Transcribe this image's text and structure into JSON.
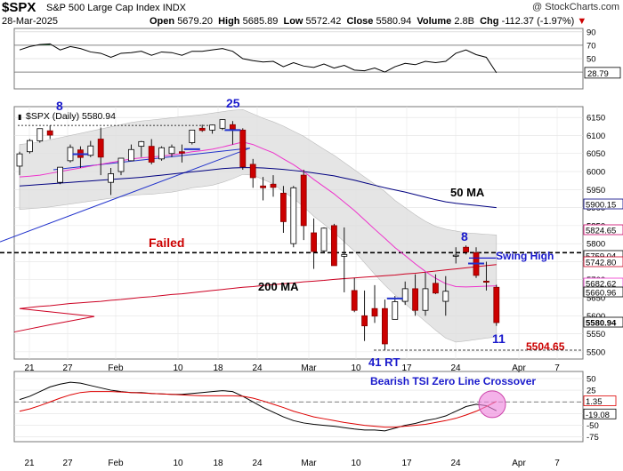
{
  "header": {
    "symbol": "$SPX",
    "name": "S&P 500 Large Cap Index",
    "exchange": "INDX",
    "date": "28-Mar-2025",
    "open_label": "Open",
    "open": "5679.20",
    "high_label": "High",
    "high": "5685.89",
    "low_label": "Low",
    "low": "5572.42",
    "close_label": "Close",
    "close": "5580.94",
    "volume_label": "Volume",
    "volume": "2.8B",
    "chg_label": "Chg",
    "chg": "-112.37 (-1.97%)",
    "watermark": "@ StockCharts.com"
  },
  "colors": {
    "up": "#ffffff",
    "down": "#cc0000",
    "ma50": "#000080",
    "ma200": "#cc0022",
    "ma20": "#ee33cc",
    "band_fill": "#dcdcdc",
    "trend_line": "#2233cc",
    "annotation_blue": "#1a1acc",
    "annotation_red": "#cc0000",
    "tsi_black": "#000000",
    "tsi_red": "#dd0000",
    "rsi_over": "#2e6b3e",
    "rsi_under": "#7a4a48",
    "highlight_circle": "#ee88dd"
  },
  "chart_data": [
    {
      "type": "line",
      "panel": "RSI",
      "ylim": [
        5,
        95
      ],
      "y_ticks": [
        90,
        70,
        50,
        30
      ],
      "reference_lines": [
        70,
        30
      ],
      "last_value_label": "28.79",
      "x": [
        "Jan 21",
        "Jan 22",
        "Jan 23",
        "Jan 24",
        "Jan 27",
        "Jan 28",
        "Jan 29",
        "Jan 30",
        "Jan 31",
        "Feb 3",
        "Feb 4",
        "Feb 5",
        "Feb 6",
        "Feb 7",
        "Feb 10",
        "Feb 11",
        "Feb 12",
        "Feb 13",
        "Feb 14",
        "Feb 18",
        "Feb 19",
        "Feb 20",
        "Feb 21",
        "Feb 24",
        "Feb 25",
        "Feb 26",
        "Feb 27",
        "Feb 28",
        "Mar 3",
        "Mar 4",
        "Mar 5",
        "Mar 6",
        "Mar 7",
        "Mar 10",
        "Mar 11",
        "Mar 12",
        "Mar 13",
        "Mar 14",
        "Mar 17",
        "Mar 18",
        "Mar 19",
        "Mar 20",
        "Mar 21",
        "Mar 24",
        "Mar 25",
        "Mar 26",
        "Mar 27",
        "Mar 28"
      ],
      "values": [
        63,
        68,
        71,
        72,
        63,
        68,
        65,
        60,
        58,
        52,
        58,
        59,
        61,
        55,
        60,
        59,
        55,
        61,
        61,
        63,
        65,
        61,
        50,
        47,
        45,
        46,
        38,
        44,
        39,
        37,
        42,
        36,
        40,
        33,
        32,
        36,
        30,
        38,
        43,
        41,
        46,
        44,
        46,
        58,
        63,
        56,
        52,
        29
      ]
    },
    {
      "type": "candlestick",
      "panel": "price",
      "symbol_label": "$SPX (Daily) 5580.94",
      "ylim": [
        5480,
        6180
      ],
      "y_ticks": [
        6150,
        6100,
        6050,
        6000,
        5950,
        5900,
        5850,
        5800,
        5750,
        5700,
        5650,
        5600,
        5550,
        5500
      ],
      "right_labels": [
        "5900.15",
        "5824.65",
        "5759.04",
        "5742.80",
        "5682.62",
        "5660.96",
        "5580.94"
      ],
      "x_ticks": [
        "21",
        "27",
        "Feb",
        "10",
        "18",
        "24",
        "Mar",
        "10",
        "17",
        "24",
        "Apr",
        "7"
      ],
      "dates": [
        "Jan 21",
        "Jan 22",
        "Jan 23",
        "Jan 24",
        "Jan 27",
        "Jan 28",
        "Jan 29",
        "Jan 30",
        "Jan 31",
        "Feb 3",
        "Feb 4",
        "Feb 5",
        "Feb 6",
        "Feb 7",
        "Feb 10",
        "Feb 11",
        "Feb 12",
        "Feb 13",
        "Feb 14",
        "Feb 18",
        "Feb 19",
        "Feb 20",
        "Feb 21",
        "Feb 24",
        "Feb 25",
        "Feb 26",
        "Feb 27",
        "Feb 28",
        "Mar 3",
        "Mar 4",
        "Mar 5",
        "Mar 6",
        "Mar 7",
        "Mar 10",
        "Mar 11",
        "Mar 12",
        "Mar 13",
        "Mar 14",
        "Mar 17",
        "Mar 18",
        "Mar 19",
        "Mar 20",
        "Mar 21",
        "Mar 24",
        "Mar 25",
        "Mar 26",
        "Mar 27",
        "Mar 28"
      ],
      "open": [
        6015,
        6055,
        6085,
        6113,
        5970,
        6030,
        6060,
        6045,
        6090,
        5970,
        6000,
        6030,
        6070,
        6070,
        6035,
        6050,
        6055,
        6080,
        6120,
        6115,
        6120,
        6130,
        6115,
        6020,
        5960,
        5965,
        5940,
        5800,
        5990,
        5830,
        5780,
        5850,
        5765,
        5670,
        5600,
        5620,
        5620,
        5590,
        5640,
        5675,
        5615,
        5690,
        5640,
        5765,
        5790,
        5775,
        5696,
        5679
      ],
      "high": [
        6055,
        6090,
        6118,
        6128,
        6005,
        6075,
        6070,
        6085,
        6122,
        6010,
        6030,
        6075,
        6085,
        6090,
        6070,
        6075,
        6075,
        6115,
        6130,
        6130,
        6145,
        6140,
        6120,
        6035,
        5985,
        5990,
        5960,
        5960,
        6005,
        5870,
        5845,
        5855,
        5845,
        5705,
        5670,
        5685,
        5645,
        5655,
        5695,
        5715,
        5720,
        5715,
        5710,
        5790,
        5795,
        5790,
        5750,
        5686
      ],
      "low": [
        5990,
        6050,
        6080,
        6090,
        5965,
        6025,
        6010,
        6040,
        5990,
        5935,
        5990,
        6030,
        6040,
        6020,
        6030,
        6040,
        6025,
        6075,
        6110,
        6105,
        6115,
        6075,
        6005,
        5955,
        5920,
        5930,
        5830,
        5790,
        5810,
        5730,
        5775,
        5740,
        5665,
        5610,
        5530,
        5580,
        5505,
        5590,
        5630,
        5600,
        5600,
        5660,
        5600,
        5745,
        5770,
        5705,
        5670,
        5572
      ],
      "close": [
        6049,
        6086,
        6119,
        6101,
        6012,
        6067,
        6039,
        6071,
        6040,
        5994,
        6037,
        6061,
        6083,
        6026,
        6066,
        6068,
        6051,
        6115,
        6114,
        6129,
        6144,
        6118,
        6013,
        5983,
        5955,
        5956,
        5861,
        5955,
        5850,
        5778,
        5843,
        5739,
        5770,
        5615,
        5572,
        5599,
        5522,
        5639,
        5675,
        5615,
        5675,
        5663,
        5668,
        5768,
        5777,
        5712,
        5693,
        5581
      ],
      "series": [
        {
          "name": "50 MA",
          "values": [
            5960,
            5962,
            5964,
            5966,
            5968,
            5970,
            5972,
            5974,
            5976,
            5978,
            5980,
            5982,
            5984,
            5987,
            5990,
            5993,
            5996,
            5999,
            6002,
            6005,
            6008,
            6010,
            6011,
            6011,
            6010,
            6008,
            6006,
            6003,
            6000,
            5996,
            5992,
            5988,
            5982,
            5976,
            5969,
            5962,
            5955,
            5949,
            5943,
            5936,
            5929,
            5922,
            5916,
            5912,
            5909,
            5906,
            5903,
            5900
          ]
        },
        {
          "name": "200 MA",
          "values": [
            5620,
            5623,
            5626,
            5628,
            5631,
            5634,
            5636,
            5638,
            5640,
            5643,
            5645,
            5648,
            5651,
            5653,
            5656,
            5659,
            5661,
            5664,
            5667,
            5670,
            5673,
            5676,
            5679,
            5681,
            5684,
            5686,
            5689,
            5691,
            5694,
            5696,
            5698,
            5701,
            5703,
            5705,
            5707,
            5709,
            5711,
            5713,
            5716,
            5718,
            5721,
            5724,
            5727,
            5730,
            5733,
            5736,
            5739,
            5742
          ]
        },
        {
          "name": "20 MA",
          "values": [
            5985,
            5987,
            5990,
            5995,
            6000,
            6005,
            6010,
            6015,
            6020,
            6025,
            6030,
            6035,
            6038,
            6040,
            6043,
            6046,
            6050,
            6055,
            6058,
            6062,
            6068,
            6075,
            6082,
            6075,
            6063,
            6052,
            6035,
            6019,
            6000,
            5978,
            5958,
            5938,
            5915,
            5892,
            5866,
            5840,
            5815,
            5789,
            5767,
            5744,
            5723,
            5704,
            5689,
            5681,
            5680,
            5681,
            5682,
            5683
          ]
        }
      ],
      "band_upper": [
        6075,
        6078,
        6082,
        6088,
        6094,
        6100,
        6106,
        6112,
        6118,
        6124,
        6130,
        6136,
        6140,
        6143,
        6146,
        6149,
        6152,
        6155,
        6158,
        6162,
        6166,
        6170,
        6172,
        6160,
        6148,
        6138,
        6126,
        6112,
        6098,
        6080,
        6062,
        6045,
        6025,
        6005,
        5985,
        5965,
        5945,
        5920,
        5900,
        5880,
        5862,
        5848,
        5840,
        5835,
        5830,
        5828,
        5826,
        5824
      ],
      "band_lower": [
        5895,
        5897,
        5899,
        5902,
        5906,
        5910,
        5914,
        5918,
        5922,
        5926,
        5930,
        5934,
        5936,
        5937,
        5940,
        5943,
        5948,
        5955,
        5958,
        5962,
        5970,
        5980,
        5992,
        5990,
        5978,
        5966,
        5944,
        5926,
        5902,
        5876,
        5854,
        5831,
        5805,
        5779,
        5747,
        5715,
        5685,
        5658,
        5634,
        5608,
        5584,
        5560,
        5538,
        5527,
        5530,
        5534,
        5538,
        5541
      ],
      "annotations": [
        {
          "text": "8",
          "color": "blue"
        },
        {
          "text": "25",
          "color": "blue"
        },
        {
          "text": "8",
          "color": "blue"
        },
        {
          "text": "Failed",
          "color": "red"
        },
        {
          "text": "Swing High",
          "color": "blue"
        },
        {
          "text": "50  MA",
          "color": "black"
        },
        {
          "text": "200  MA",
          "color": "black"
        },
        {
          "text": "11",
          "color": "blue"
        },
        {
          "text": "41 RT",
          "color": "blue"
        },
        {
          "text": "5504.65",
          "color": "red"
        }
      ]
    },
    {
      "type": "line",
      "panel": "TSI",
      "ylim": [
        -85,
        65
      ],
      "y_ticks": [
        50,
        25,
        0,
        -25,
        -50,
        -75
      ],
      "right_labels": [
        "1.35",
        "-19.08"
      ],
      "annotation": "Bearish TSI Zero Line Crossover",
      "series": [
        {
          "name": "TSI",
          "values": [
            5,
            12,
            22,
            32,
            38,
            42,
            40,
            35,
            30,
            25,
            22,
            20,
            20,
            18,
            17,
            16,
            16,
            18,
            20,
            22,
            24,
            22,
            12,
            0,
            -12,
            -22,
            -32,
            -40,
            -45,
            -48,
            -50,
            -52,
            -55,
            -58,
            -60,
            -60,
            -62,
            -56,
            -50,
            -46,
            -40,
            -36,
            -30,
            -20,
            -10,
            -5,
            -8,
            -19
          ]
        },
        {
          "name": "Signal",
          "values": [
            -20,
            -15,
            -8,
            0,
            8,
            15,
            20,
            22,
            22,
            22,
            21,
            20,
            19,
            18,
            17,
            16,
            15,
            14,
            13,
            13,
            13,
            13,
            12,
            8,
            2,
            -5,
            -12,
            -20,
            -26,
            -32,
            -36,
            -40,
            -44,
            -47,
            -50,
            -52,
            -54,
            -54,
            -52,
            -50,
            -48,
            -44,
            -40,
            -35,
            -28,
            -20,
            -10,
            1
          ]
        }
      ],
      "x_ticks": [
        "21",
        "27",
        "Feb",
        "10",
        "18",
        "24",
        "Mar",
        "10",
        "17",
        "24",
        "Apr",
        "7"
      ]
    }
  ]
}
